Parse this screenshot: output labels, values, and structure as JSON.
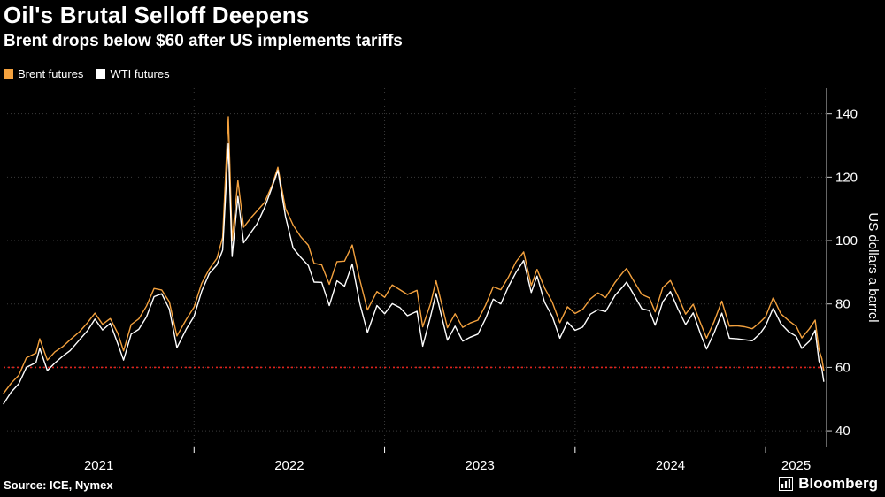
{
  "header": {
    "title": "Oil's Brutal Selloff Deepens",
    "subtitle": "Brent drops below $60 after US implements tariffs"
  },
  "legend": {
    "items": [
      {
        "label": "Brent futures",
        "color": "#F3A13E"
      },
      {
        "label": "WTI futures",
        "color": "#FFFFFF"
      }
    ]
  },
  "footer": {
    "source": "Source: ICE, Nymex",
    "brand": "Bloomberg"
  },
  "chart_data": {
    "type": "line",
    "y_axis_title": "US dollars a barrel",
    "y_ticks": [
      40,
      60,
      80,
      100,
      120,
      140
    ],
    "x_year_labels": [
      2021,
      2022,
      2023,
      2024,
      2025
    ],
    "xlim": [
      2021.0,
      2025.32
    ],
    "ylim": [
      35,
      148
    ],
    "grid_color": "#3b3b3b",
    "axis_color": "#cccccc",
    "text_color": "#ffffff",
    "threshold": {
      "value": 60,
      "color": "#E0231C"
    },
    "x": [
      2021.0,
      2021.04,
      2021.08,
      2021.12,
      2021.17,
      2021.19,
      2021.23,
      2021.27,
      2021.31,
      2021.35,
      2021.4,
      2021.44,
      2021.48,
      2021.52,
      2021.56,
      2021.6,
      2021.63,
      2021.67,
      2021.71,
      2021.75,
      2021.79,
      2021.83,
      2021.87,
      2021.91,
      2021.96,
      2022.0,
      2022.04,
      2022.08,
      2022.12,
      2022.15,
      2022.18,
      2022.2,
      2022.23,
      2022.26,
      2022.3,
      2022.33,
      2022.37,
      2022.41,
      2022.44,
      2022.48,
      2022.52,
      2022.56,
      2022.6,
      2022.63,
      2022.67,
      2022.71,
      2022.75,
      2022.79,
      2022.83,
      2022.87,
      2022.91,
      2022.96,
      2023.0,
      2023.04,
      2023.08,
      2023.12,
      2023.17,
      2023.2,
      2023.24,
      2023.27,
      2023.33,
      2023.37,
      2023.41,
      2023.45,
      2023.49,
      2023.53,
      2023.57,
      2023.61,
      2023.65,
      2023.69,
      2023.73,
      2023.77,
      2023.8,
      2023.84,
      2023.88,
      2023.92,
      2023.96,
      2024.0,
      2024.04,
      2024.08,
      2024.12,
      2024.16,
      2024.21,
      2024.25,
      2024.27,
      2024.31,
      2024.35,
      2024.39,
      2024.42,
      2024.46,
      2024.5,
      2024.54,
      2024.58,
      2024.62,
      2024.66,
      2024.69,
      2024.73,
      2024.77,
      2024.81,
      2024.85,
      2024.89,
      2024.93,
      2024.97,
      2025.0,
      2025.04,
      2025.08,
      2025.12,
      2025.16,
      2025.19,
      2025.23,
      2025.26,
      2025.28,
      2025.295,
      2025.305
    ],
    "series": [
      {
        "name": "Brent futures",
        "color": "#F3A13E",
        "values": [
          51.8,
          55.0,
          57.5,
          63.0,
          64.5,
          69.0,
          62.3,
          64.9,
          66.5,
          68.7,
          71.3,
          74.0,
          77.1,
          73.6,
          75.4,
          70.7,
          65.2,
          73.5,
          75.3,
          79.3,
          84.9,
          84.4,
          80.7,
          69.9,
          75.2,
          79.0,
          86.5,
          91.0,
          94.4,
          101.0,
          139.1,
          99.9,
          119.0,
          104.2,
          107.3,
          109.3,
          112.0,
          117.5,
          123.1,
          110.1,
          104.9,
          101.2,
          98.5,
          92.8,
          92.3,
          86.2,
          93.3,
          93.5,
          98.6,
          87.6,
          78.1,
          83.9,
          82.1,
          86.0,
          84.5,
          83.0,
          84.3,
          72.8,
          79.8,
          87.3,
          72.5,
          76.9,
          72.6,
          74.0,
          74.9,
          79.6,
          85.4,
          84.5,
          88.5,
          93.3,
          96.4,
          85.8,
          90.9,
          85.0,
          80.6,
          74.1,
          79.1,
          77.0,
          78.3,
          81.6,
          83.5,
          82.0,
          86.8,
          89.9,
          91.2,
          87.0,
          83.0,
          81.9,
          77.5,
          85.2,
          87.4,
          82.4,
          76.8,
          79.9,
          73.7,
          69.2,
          74.5,
          80.9,
          73.0,
          73.1,
          72.8,
          72.2,
          74.2,
          76.0,
          82.0,
          76.9,
          74.8,
          73.0,
          69.3,
          72.2,
          74.9,
          65.6,
          62.8,
          59.1
        ]
      },
      {
        "name": "WTI futures",
        "color": "#FFFFFF",
        "values": [
          48.5,
          52.2,
          54.8,
          60.0,
          61.5,
          66.0,
          59.0,
          61.4,
          63.5,
          65.3,
          68.8,
          71.5,
          75.2,
          71.8,
          73.9,
          67.4,
          62.3,
          70.5,
          72.0,
          75.9,
          82.3,
          83.2,
          78.4,
          66.2,
          72.2,
          76.1,
          84.0,
          89.6,
          92.3,
          97.0,
          130.5,
          95.0,
          113.9,
          99.3,
          102.7,
          105.2,
          110.3,
          116.9,
          122.1,
          107.6,
          97.6,
          94.7,
          92.1,
          86.9,
          86.8,
          79.5,
          87.3,
          85.6,
          92.6,
          80.1,
          71.0,
          79.5,
          76.9,
          80.1,
          78.9,
          76.3,
          77.7,
          66.7,
          75.7,
          83.3,
          68.6,
          73.0,
          68.3,
          69.5,
          70.5,
          75.4,
          81.5,
          80.0,
          85.5,
          90.0,
          93.7,
          83.6,
          88.8,
          80.5,
          76.1,
          69.2,
          74.3,
          71.7,
          72.7,
          76.8,
          78.2,
          77.6,
          82.7,
          85.4,
          86.9,
          82.7,
          78.5,
          77.9,
          73.3,
          80.7,
          83.9,
          78.4,
          73.5,
          77.2,
          70.3,
          65.8,
          71.0,
          77.1,
          69.2,
          69.0,
          68.7,
          68.4,
          70.6,
          73.1,
          78.7,
          73.8,
          71.3,
          69.8,
          66.0,
          68.3,
          71.7,
          62.0,
          59.6,
          55.6
        ]
      }
    ]
  }
}
